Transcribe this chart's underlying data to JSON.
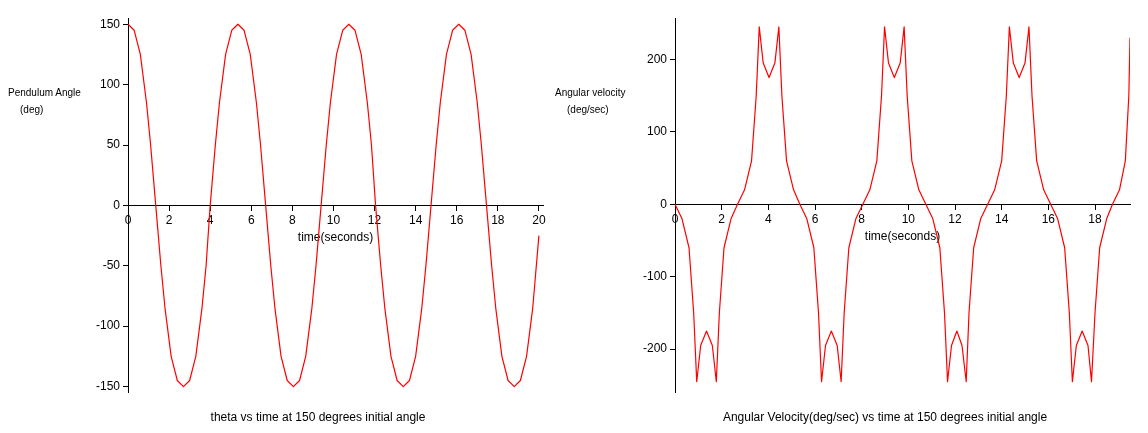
{
  "chart_data": [
    {
      "type": "line",
      "title": "theta vs time at 150 degrees initial angle",
      "xlabel": "time(seconds)",
      "ylabel": "Pendulum Angle\n(deg)",
      "xlim": [
        0,
        20.2
      ],
      "ylim": [
        -155,
        155
      ],
      "xticks": [
        0,
        2,
        4,
        6,
        8,
        10,
        12,
        14,
        16,
        18,
        20
      ],
      "yticks": [
        -150,
        -100,
        -50,
        0,
        50,
        100,
        150
      ],
      "x": [
        0,
        0.3,
        0.6,
        0.9,
        1.1,
        1.35,
        1.6,
        1.8,
        2.1,
        2.4,
        2.7,
        3.0,
        3.3,
        3.6,
        3.8,
        4.0,
        4.25,
        4.45,
        4.75,
        5.05,
        5.35,
        5.65,
        5.95,
        6.25,
        6.45,
        6.7,
        6.95,
        7.15,
        7.45,
        7.75,
        8.05,
        8.35,
        8.65,
        8.95,
        9.15,
        9.4,
        9.65,
        9.85,
        10.15,
        10.45,
        10.75,
        11.05,
        11.35,
        11.65,
        11.85,
        12.05,
        12.3,
        12.5,
        12.8,
        13.1,
        13.4,
        13.7,
        14.0,
        14.3,
        14.5,
        14.75,
        15.0,
        15.2,
        15.5,
        15.8,
        16.1,
        16.4,
        16.7,
        17.0,
        17.2,
        17.45,
        17.7,
        17.9,
        18.2,
        18.5,
        18.8,
        19.1,
        19.4,
        19.7,
        20
      ],
      "series": [
        {
          "color": "#ff0000",
          "values": [
            150,
            145,
            125,
            85,
            50,
            0,
            -50,
            -85,
            -125,
            -145,
            -150,
            -145,
            -125,
            -85,
            -50,
            0,
            50,
            85,
            125,
            145,
            150,
            145,
            125,
            85,
            50,
            0,
            -50,
            -85,
            -125,
            -145,
            -150,
            -145,
            -125,
            -85,
            -50,
            0,
            50,
            85,
            125,
            145,
            150,
            145,
            125,
            85,
            50,
            0,
            -50,
            -85,
            -125,
            -145,
            -150,
            -145,
            -125,
            -85,
            -50,
            0,
            50,
            85,
            125,
            145,
            150,
            145,
            125,
            85,
            50,
            0,
            -50,
            -85,
            -125,
            -145,
            -150,
            -145,
            -125,
            -85,
            -25
          ]
        }
      ]
    },
    {
      "type": "line",
      "title": "Angular Velocity(deg/sec) vs time at 150 degrees initial angle",
      "xlabel": "time(seconds)",
      "ylabel": "Angular velocity\n(deg/sec)",
      "xlim": [
        0,
        19.5
      ],
      "ylim": [
        -260,
        257
      ],
      "xticks": [
        0,
        2,
        4,
        6,
        8,
        10,
        12,
        14,
        16,
        18
      ],
      "yticks": [
        -200,
        -100,
        0,
        100,
        200
      ],
      "x": [
        0,
        0.3,
        0.6,
        0.8,
        0.93,
        1.1,
        1.35,
        1.6,
        1.77,
        1.9,
        2.1,
        2.4,
        2.68,
        2.98,
        3.28,
        3.48,
        3.61,
        3.78,
        4.03,
        4.28,
        4.45,
        4.58,
        4.78,
        5.08,
        5.35,
        5.65,
        5.95,
        6.15,
        6.28,
        6.45,
        6.7,
        6.95,
        7.12,
        7.25,
        7.45,
        7.75,
        8.05,
        8.35,
        8.65,
        8.85,
        8.98,
        9.15,
        9.4,
        9.65,
        9.82,
        9.95,
        10.15,
        10.45,
        10.75,
        11.05,
        11.35,
        11.55,
        11.68,
        11.85,
        12.08,
        12.3,
        12.48,
        12.6,
        12.8,
        13.1,
        13.4,
        13.7,
        14.0,
        14.2,
        14.33,
        14.5,
        14.75,
        15.0,
        15.17,
        15.3,
        15.5,
        15.8,
        16.1,
        16.4,
        16.7,
        16.9,
        17.03,
        17.2,
        17.45,
        17.7,
        17.85,
        18.0,
        18.2,
        18.5,
        18.75,
        19.05,
        19.3,
        19.45,
        19.5
      ],
      "series": [
        {
          "color": "#ff0000",
          "values": [
            0,
            -20,
            -60,
            -150,
            -245,
            -195,
            -175,
            -195,
            -245,
            -150,
            -60,
            -20,
            0,
            20,
            60,
            150,
            245,
            195,
            175,
            195,
            245,
            150,
            60,
            20,
            0,
            -20,
            -60,
            -150,
            -245,
            -195,
            -175,
            -195,
            -245,
            -150,
            -60,
            -20,
            0,
            20,
            60,
            150,
            245,
            195,
            175,
            195,
            245,
            150,
            60,
            20,
            0,
            -20,
            -60,
            -150,
            -245,
            -195,
            -175,
            -195,
            -245,
            -150,
            -60,
            -20,
            0,
            20,
            60,
            150,
            245,
            195,
            175,
            195,
            245,
            150,
            60,
            20,
            0,
            -20,
            -60,
            -150,
            -245,
            -195,
            -175,
            -195,
            -245,
            -150,
            -60,
            -20,
            0,
            20,
            60,
            150,
            230
          ]
        }
      ]
    }
  ]
}
